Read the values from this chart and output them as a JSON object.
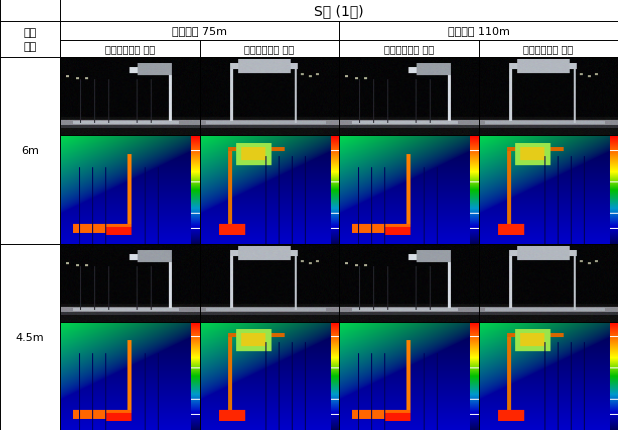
{
  "title": "S사 (1개)",
  "row_header": "설치\n높이",
  "col_header_l1_1": "정지시거 75m",
  "col_header_l1_2": "정지시거 110m",
  "col_header_l2": [
    "주행전방에서 측정",
    "반대방향에서 측정",
    "주행전방에서 측정",
    "반대방향에서 측정"
  ],
  "row_labels": [
    "6m",
    "4.5m"
  ],
  "background_color": "#ffffff",
  "font_size_title": 10,
  "font_size_header1": 8,
  "font_size_header2": 7,
  "font_size_label": 8
}
